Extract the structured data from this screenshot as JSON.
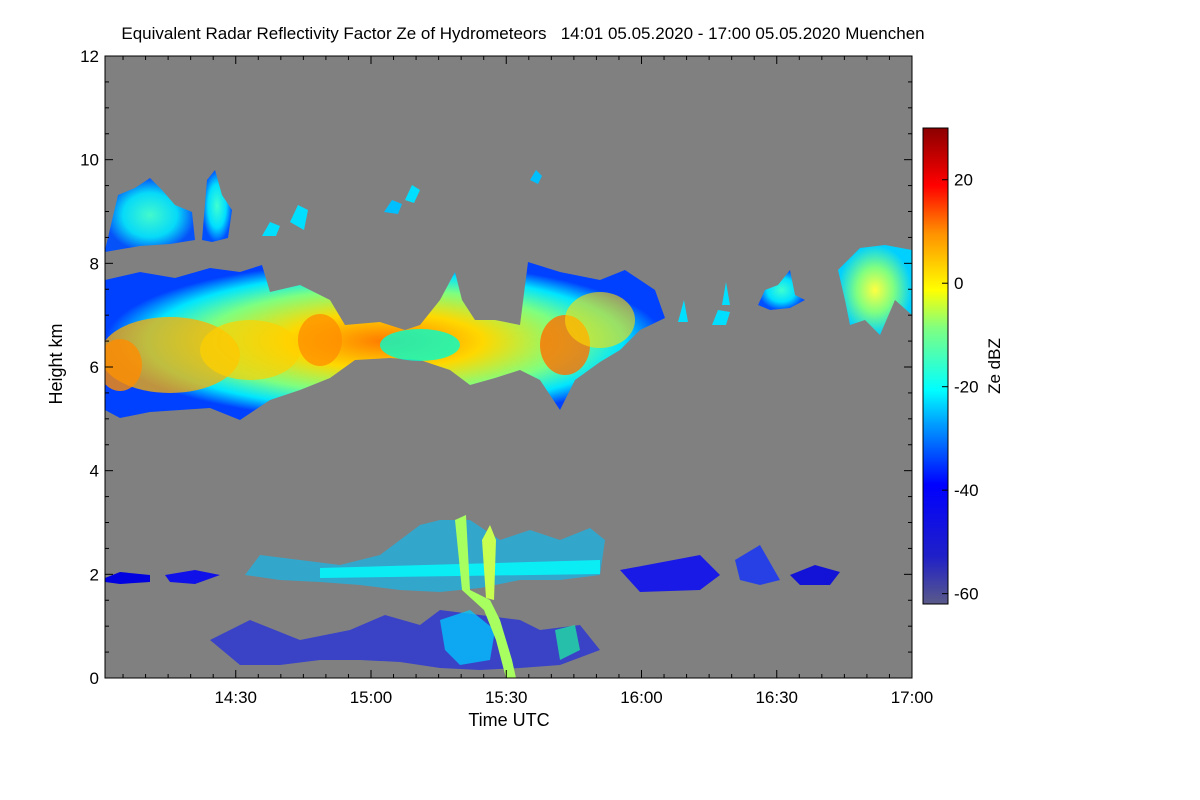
{
  "chart_data": {
    "type": "heatmap",
    "title": "Equivalent Radar Reflectivity Factor Ze of Hydrometeors   14:01 05.05.2020 - 17:00 05.05.2020 Muenchen",
    "xlabel": "Time UTC",
    "ylabel": "Height km",
    "x_range": [
      "14:01",
      "17:00"
    ],
    "y_range": [
      0,
      12
    ],
    "x_ticks": [
      "14:30",
      "15:00",
      "15:30",
      "16:00",
      "16:30",
      "17:00"
    ],
    "y_ticks": [
      "0",
      "2",
      "4",
      "6",
      "8",
      "10",
      "12"
    ],
    "colorbar": {
      "label": "Ze dBZ",
      "range": [
        -62,
        30
      ],
      "ticks": [
        "20",
        "0",
        "-20",
        "-40",
        "-60"
      ]
    },
    "background_color": "#808080",
    "colormap": [
      "#00008b",
      "#0000ff",
      "#00bfff",
      "#00ffff",
      "#7fff7f",
      "#ffff00",
      "#ff7f00",
      "#ff0000",
      "#8b0000"
    ]
  }
}
